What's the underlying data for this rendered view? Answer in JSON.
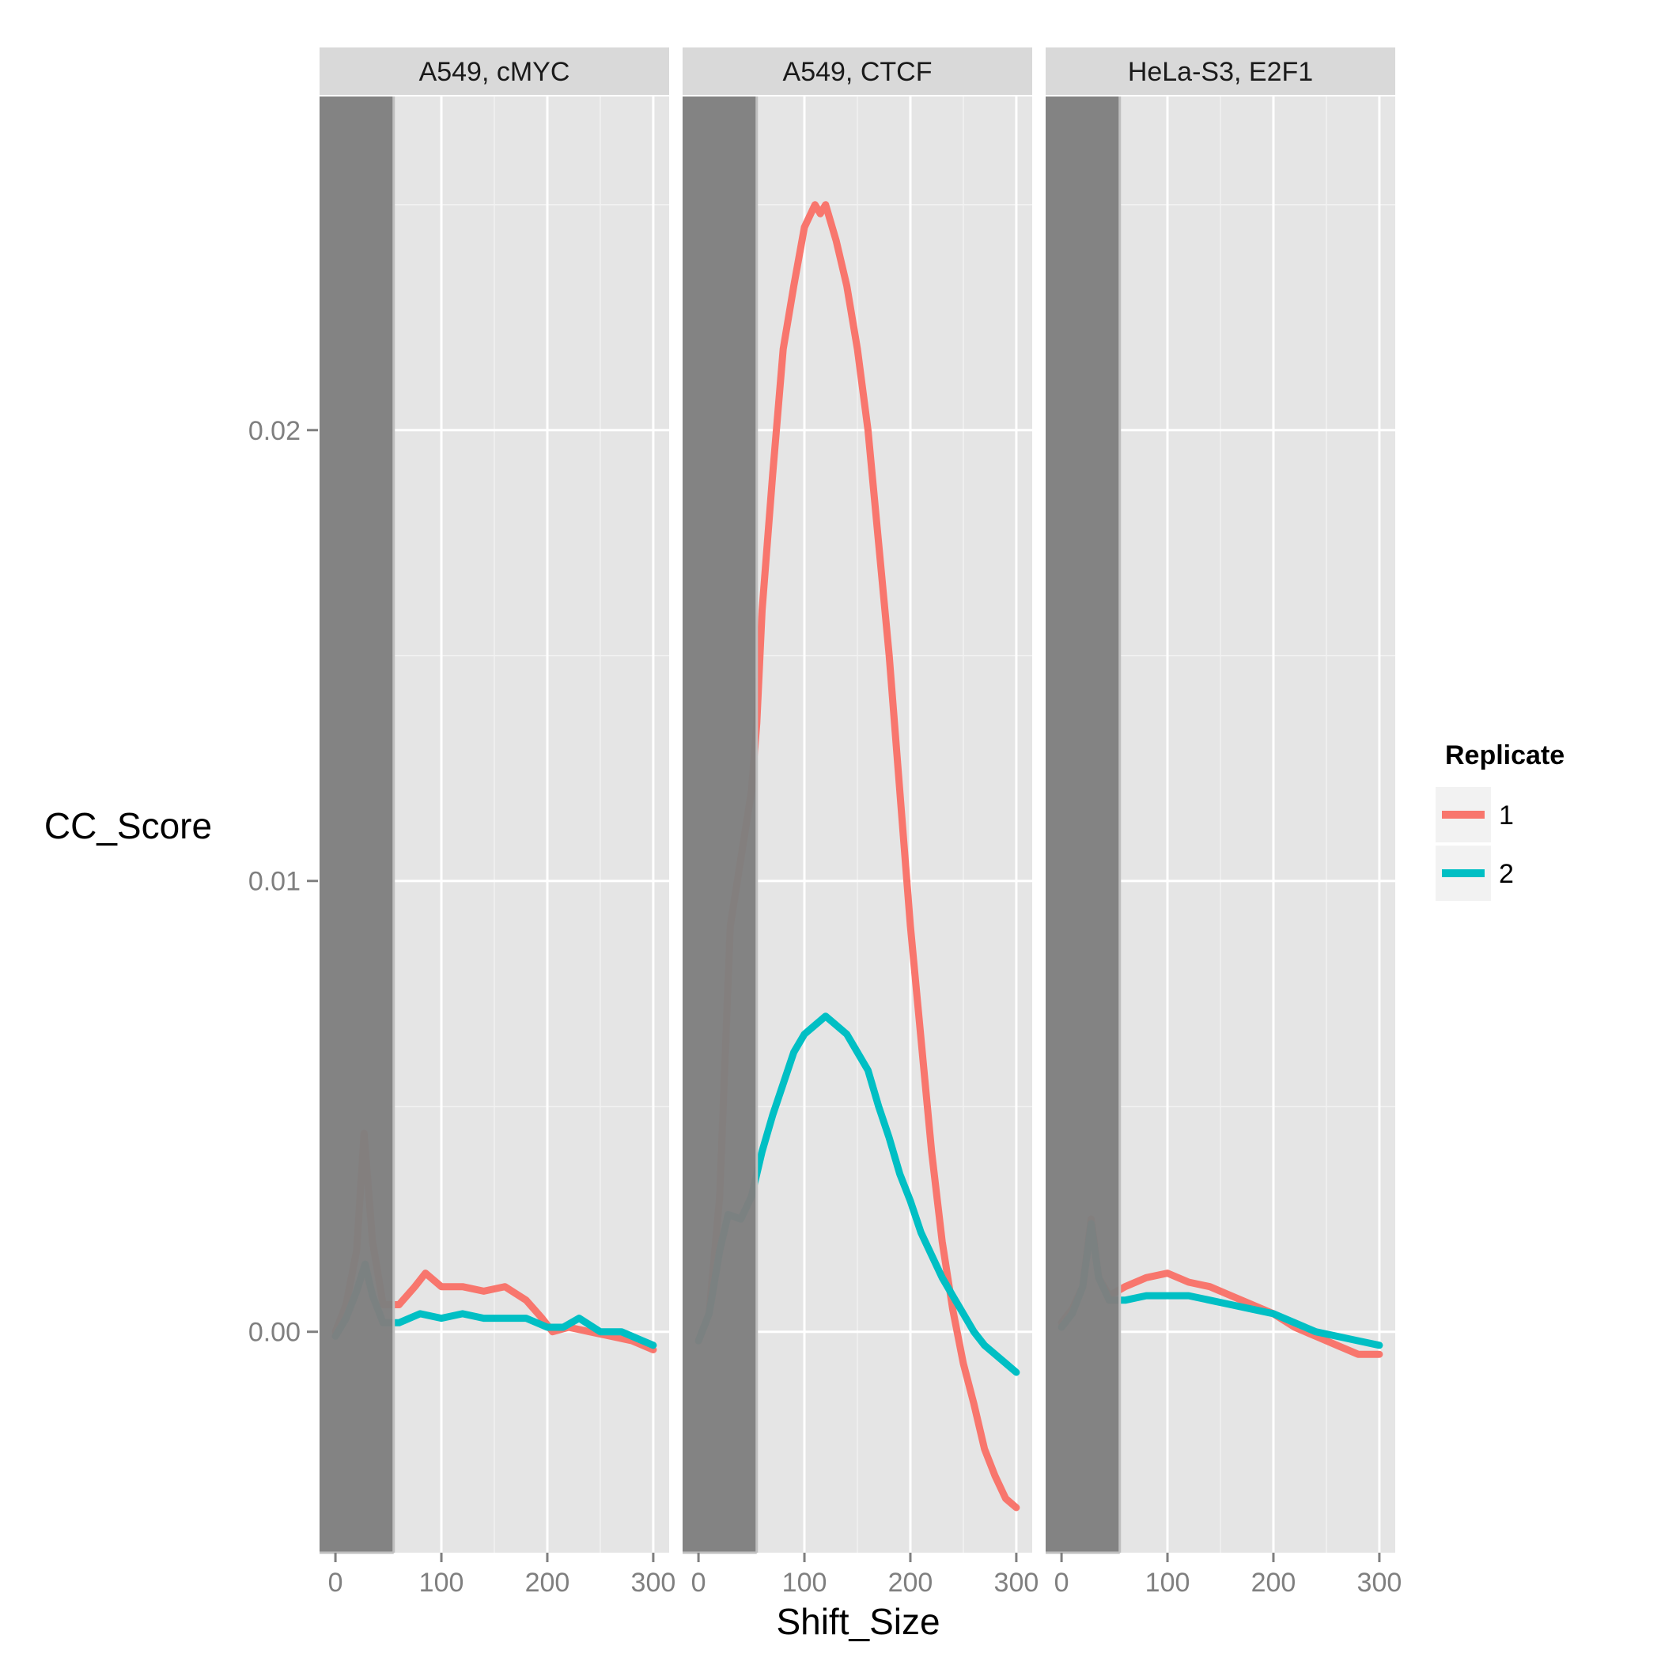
{
  "chart_data": {
    "type": "line",
    "xlabel": "Shift_Size",
    "ylabel": "CC_Score",
    "xlim": [
      -15,
      315
    ],
    "ylim": [
      -0.0049,
      0.0274
    ],
    "x_ticks": [
      0,
      100,
      200,
      300
    ],
    "x_tick_labels": [
      "0",
      "100",
      "200",
      "300"
    ],
    "y_ticks": [
      0.0,
      0.01,
      0.02
    ],
    "y_tick_labels": [
      "0.00",
      "0.01",
      "0.02"
    ],
    "grid": true,
    "excluded_region": {
      "x_from": -15,
      "x_to": 55
    },
    "legend": {
      "title": "Replicate",
      "placement": "right",
      "entries": [
        {
          "label": "1",
          "color": "#F8766D"
        },
        {
          "label": "2",
          "color": "#00BFC4"
        }
      ]
    },
    "panels": [
      {
        "title": "A549, cMYC",
        "series": [
          {
            "name": "1",
            "color": "#F8766D",
            "x": [
              0,
              10,
              20,
              27,
              35,
              45,
              60,
              75,
              85,
              100,
              120,
              140,
              160,
              180,
              195,
              205,
              220,
              240,
              260,
              280,
              300
            ],
            "y": [
              0.0,
              0.0006,
              0.0018,
              0.0044,
              0.002,
              0.0006,
              0.0006,
              0.001,
              0.0013,
              0.001,
              0.001,
              0.0009,
              0.001,
              0.0007,
              0.0003,
              0.0,
              0.0001,
              0.0,
              -0.0001,
              -0.0002,
              -0.0004
            ]
          },
          {
            "name": "2",
            "color": "#00BFC4",
            "x": [
              0,
              10,
              20,
              28,
              35,
              45,
              60,
              80,
              100,
              120,
              140,
              160,
              180,
              200,
              215,
              230,
              250,
              270,
              290,
              300
            ],
            "y": [
              -0.0001,
              0.0003,
              0.0009,
              0.0015,
              0.0008,
              0.0002,
              0.0002,
              0.0004,
              0.0003,
              0.0004,
              0.0003,
              0.0003,
              0.0003,
              0.0001,
              0.0001,
              0.0003,
              0.0,
              0.0,
              -0.0002,
              -0.0003
            ]
          }
        ]
      },
      {
        "title": "A549, CTCF",
        "series": [
          {
            "name": "1",
            "color": "#F8766D",
            "x": [
              0,
              10,
              20,
              30,
              40,
              50,
              55,
              60,
              70,
              80,
              90,
              100,
              110,
              115,
              120,
              130,
              140,
              150,
              160,
              170,
              180,
              190,
              200,
              210,
              220,
              230,
              240,
              250,
              260,
              270,
              280,
              290,
              300
            ],
            "y": [
              -0.0002,
              0.0004,
              0.003,
              0.009,
              0.0105,
              0.012,
              0.0135,
              0.016,
              0.019,
              0.0218,
              0.0232,
              0.0245,
              0.025,
              0.0248,
              0.025,
              0.0242,
              0.0232,
              0.0218,
              0.02,
              0.0175,
              0.015,
              0.012,
              0.009,
              0.0065,
              0.004,
              0.002,
              0.0005,
              -0.0007,
              -0.0016,
              -0.0026,
              -0.0032,
              -0.0037,
              -0.0039
            ]
          },
          {
            "name": "2",
            "color": "#00BFC4",
            "x": [
              0,
              10,
              20,
              28,
              40,
              50,
              60,
              70,
              80,
              90,
              100,
              110,
              120,
              130,
              140,
              150,
              160,
              170,
              180,
              190,
              200,
              210,
              220,
              230,
              240,
              250,
              260,
              270,
              280,
              290,
              300
            ],
            "y": [
              -0.0002,
              0.0004,
              0.0018,
              0.0026,
              0.0025,
              0.003,
              0.004,
              0.0048,
              0.0055,
              0.0062,
              0.0066,
              0.0068,
              0.007,
              0.0068,
              0.0066,
              0.0062,
              0.0058,
              0.005,
              0.0043,
              0.0035,
              0.0029,
              0.0022,
              0.0017,
              0.0012,
              0.0008,
              0.0004,
              0.0,
              -0.0003,
              -0.0005,
              -0.0007,
              -0.0009
            ]
          }
        ]
      },
      {
        "title": "HeLa-S3, E2F1",
        "series": [
          {
            "name": "1",
            "color": "#F8766D",
            "x": [
              0,
              10,
              20,
              28,
              35,
              45,
              60,
              80,
              100,
              120,
              140,
              160,
              180,
              200,
              220,
              240,
              260,
              280,
              300
            ],
            "y": [
              0.0002,
              0.0005,
              0.001,
              0.0025,
              0.0012,
              0.0008,
              0.001,
              0.0012,
              0.0013,
              0.0011,
              0.001,
              0.0008,
              0.0006,
              0.0004,
              0.0001,
              -0.0001,
              -0.0003,
              -0.0005,
              -0.0005
            ]
          },
          {
            "name": "2",
            "color": "#00BFC4",
            "x": [
              0,
              10,
              20,
              28,
              35,
              45,
              60,
              80,
              100,
              120,
              140,
              160,
              180,
              200,
              220,
              240,
              260,
              280,
              300
            ],
            "y": [
              0.0001,
              0.0004,
              0.001,
              0.0024,
              0.0012,
              0.0007,
              0.0007,
              0.0008,
              0.0008,
              0.0008,
              0.0007,
              0.0006,
              0.0005,
              0.0004,
              0.0002,
              0.0,
              -0.0001,
              -0.0002,
              -0.0003
            ]
          }
        ]
      }
    ]
  }
}
